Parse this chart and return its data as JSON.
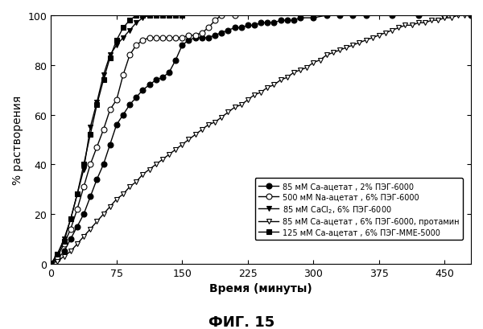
{
  "title": "ФИГ. 15",
  "xlabel": "Время (минуты)",
  "ylabel": "% растворения",
  "xlim": [
    0,
    480
  ],
  "ylim": [
    0,
    100
  ],
  "xticks": [
    0,
    75,
    150,
    225,
    300,
    375,
    450
  ],
  "yticks": [
    0,
    20,
    40,
    60,
    80,
    100
  ],
  "series": [
    {
      "label": "85 мМ Ca-ацетат , 2% ПЭГ-6000",
      "color": "black",
      "marker": "o",
      "markerfacecolor": "black",
      "markersize": 5,
      "x": [
        0,
        7.5,
        15,
        22.5,
        30,
        37.5,
        45,
        52.5,
        60,
        67.5,
        75,
        82.5,
        90,
        97.5,
        105,
        112.5,
        120,
        127.5,
        135,
        142.5,
        150,
        157.5,
        165,
        172.5,
        180,
        187.5,
        195,
        202.5,
        210,
        217.5,
        225,
        232.5,
        240,
        247.5,
        255,
        262.5,
        270,
        277.5,
        285,
        300,
        315,
        330,
        345,
        360,
        390,
        420,
        450,
        480
      ],
      "y": [
        0,
        2,
        5,
        10,
        15,
        20,
        27,
        34,
        40,
        48,
        56,
        60,
        64,
        67,
        70,
        72,
        74,
        75,
        77,
        82,
        88,
        90,
        91,
        91,
        91,
        92,
        93,
        94,
        95,
        95,
        96,
        96,
        97,
        97,
        97,
        98,
        98,
        98,
        99,
        99,
        100,
        100,
        100,
        100,
        100,
        100,
        100,
        100
      ]
    },
    {
      "label": "500 мМ Na-ацетат , 6% ПЭГ-6000",
      "color": "black",
      "marker": "o",
      "markerfacecolor": "white",
      "markersize": 5,
      "x": [
        0,
        7.5,
        15,
        22.5,
        30,
        37.5,
        45,
        52.5,
        60,
        67.5,
        75,
        82.5,
        90,
        97.5,
        105,
        112.5,
        120,
        127.5,
        135,
        142.5,
        150,
        157.5,
        165,
        172.5,
        180,
        187.5,
        195,
        210
      ],
      "y": [
        0,
        3,
        8,
        14,
        22,
        31,
        40,
        47,
        54,
        62,
        66,
        76,
        84,
        88,
        90,
        91,
        91,
        91,
        91,
        91,
        91,
        92,
        92,
        93,
        95,
        98,
        100,
        100
      ]
    },
    {
      "label": "85 мМ CaCl$_2$, 6% ПЭГ-6000",
      "color": "black",
      "marker": "v",
      "markerfacecolor": "black",
      "markersize": 5,
      "x": [
        0,
        7.5,
        15,
        22.5,
        30,
        37.5,
        45,
        52.5,
        60,
        67.5,
        75,
        82.5,
        90,
        97.5,
        105,
        112.5,
        120
      ],
      "y": [
        0,
        4,
        10,
        18,
        28,
        38,
        55,
        65,
        76,
        84,
        88,
        91,
        94,
        97,
        99,
        100,
        100
      ]
    },
    {
      "label": "85 мМ Ca-ацетат , 6% ПЭГ-6000, протамин",
      "color": "black",
      "marker": "v",
      "markerfacecolor": "white",
      "markersize": 5,
      "x": [
        0,
        7.5,
        15,
        22.5,
        30,
        37.5,
        45,
        52.5,
        60,
        67.5,
        75,
        82.5,
        90,
        97.5,
        105,
        112.5,
        120,
        127.5,
        135,
        142.5,
        150,
        157.5,
        165,
        172.5,
        180,
        187.5,
        195,
        202.5,
        210,
        217.5,
        225,
        232.5,
        240,
        247.5,
        255,
        262.5,
        270,
        277.5,
        285,
        292.5,
        300,
        307.5,
        315,
        322.5,
        330,
        337.5,
        345,
        352.5,
        360,
        367.5,
        375,
        382.5,
        390,
        397.5,
        405,
        412.5,
        420,
        427.5,
        435,
        442.5,
        450,
        457.5,
        465,
        472.5,
        480
      ],
      "y": [
        0,
        1,
        3,
        5,
        8,
        11,
        14,
        17,
        20,
        23,
        26,
        28,
        31,
        33,
        36,
        38,
        40,
        42,
        44,
        46,
        48,
        50,
        52,
        54,
        56,
        57,
        59,
        61,
        63,
        64,
        66,
        68,
        69,
        71,
        72,
        74,
        75,
        77,
        78,
        79,
        81,
        82,
        84,
        85,
        86,
        87,
        88,
        89,
        90,
        91,
        92,
        93,
        94,
        95,
        96,
        96,
        97,
        97,
        98,
        98,
        99,
        99,
        100,
        100,
        100
      ]
    },
    {
      "label": "125 мМ Ca-ацетат , 6% ПЭГ-ММЕ-5000",
      "color": "black",
      "marker": "s",
      "markerfacecolor": "black",
      "markersize": 5,
      "x": [
        0,
        7.5,
        15,
        22.5,
        30,
        37.5,
        45,
        52.5,
        60,
        67.5,
        75,
        82.5,
        90,
        97.5,
        105,
        112.5,
        120,
        127.5,
        135,
        142.5,
        150
      ],
      "y": [
        0,
        4,
        9,
        18,
        28,
        40,
        52,
        64,
        74,
        83,
        90,
        95,
        98,
        100,
        100,
        100,
        100,
        100,
        100,
        100,
        100
      ]
    }
  ]
}
